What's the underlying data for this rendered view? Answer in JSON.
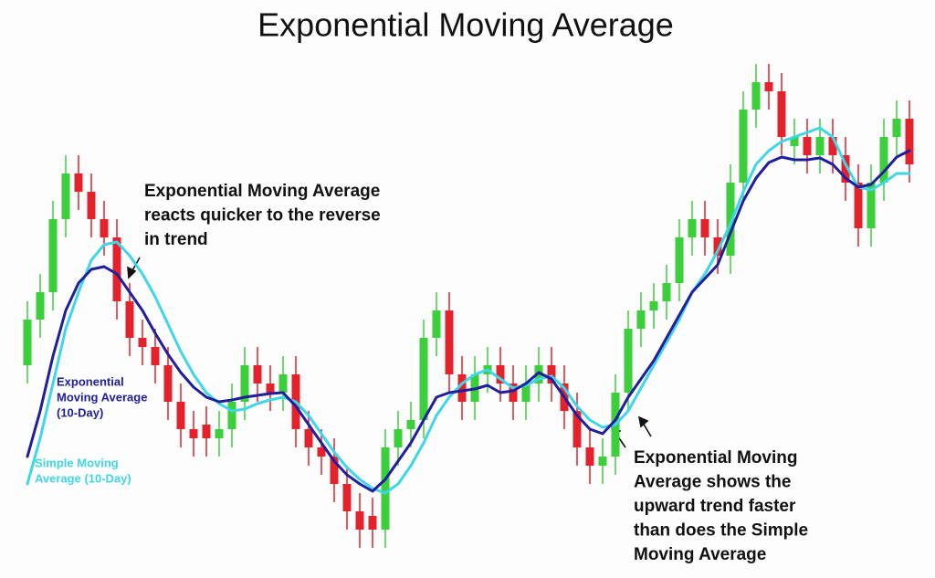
{
  "chart_data": {
    "type": "candlestick",
    "title": "Exponential Moving Average",
    "ylim": [
      0,
      600
    ],
    "up_color": "#3ccf3c",
    "down_color": "#e3222c",
    "open": [
      220,
      270,
      300,
      380,
      430,
      410,
      380,
      360,
      290,
      250,
      240,
      220,
      180,
      150,
      155,
      140,
      150,
      180,
      220,
      200,
      190,
      210,
      150,
      130,
      120,
      90,
      60,
      55,
      40,
      130,
      150,
      160,
      250,
      280,
      210,
      180,
      210,
      220,
      200,
      180,
      200,
      220,
      200,
      170,
      130,
      110,
      120,
      190,
      260,
      280,
      290,
      310,
      360,
      380,
      360,
      340,
      420,
      500,
      530,
      520,
      460,
      470,
      450,
      470,
      450,
      420,
      370,
      420,
      470,
      490
    ],
    "high": [
      290,
      320,
      400,
      450,
      450,
      430,
      400,
      380,
      310,
      270,
      260,
      240,
      200,
      170,
      175,
      170,
      200,
      240,
      240,
      220,
      230,
      230,
      170,
      150,
      140,
      110,
      80,
      75,
      150,
      170,
      180,
      270,
      300,
      300,
      230,
      230,
      240,
      240,
      220,
      220,
      240,
      240,
      220,
      190,
      150,
      140,
      210,
      280,
      300,
      310,
      330,
      380,
      400,
      400,
      380,
      440,
      520,
      550,
      550,
      540,
      490,
      490,
      490,
      490,
      470,
      440,
      440,
      490,
      510,
      510
    ],
    "low": [
      200,
      250,
      280,
      360,
      390,
      360,
      340,
      270,
      230,
      220,
      200,
      160,
      130,
      120,
      120,
      120,
      130,
      160,
      180,
      170,
      170,
      130,
      110,
      100,
      70,
      40,
      20,
      20,
      20,
      110,
      130,
      140,
      230,
      190,
      160,
      160,
      190,
      180,
      160,
      160,
      180,
      180,
      150,
      110,
      90,
      90,
      100,
      170,
      240,
      260,
      270,
      290,
      340,
      340,
      320,
      320,
      400,
      480,
      500,
      450,
      440,
      430,
      430,
      430,
      400,
      350,
      350,
      400,
      450,
      420
    ],
    "close": [
      270,
      300,
      380,
      430,
      410,
      380,
      360,
      290,
      250,
      240,
      220,
      180,
      150,
      140,
      140,
      150,
      180,
      220,
      200,
      190,
      210,
      150,
      130,
      120,
      90,
      60,
      40,
      40,
      130,
      150,
      160,
      250,
      280,
      210,
      180,
      210,
      220,
      200,
      180,
      200,
      220,
      200,
      170,
      130,
      110,
      120,
      190,
      260,
      280,
      290,
      310,
      360,
      380,
      360,
      340,
      420,
      500,
      530,
      520,
      470,
      470,
      450,
      470,
      450,
      420,
      370,
      420,
      470,
      490,
      440
    ],
    "series": [
      {
        "name": [
          "Exponential",
          "Moving Average",
          "(10-Day)"
        ],
        "color": "#1f1f9e",
        "values": [
          120,
          170,
          230,
          280,
          310,
          325,
          328,
          320,
          300,
          280,
          255,
          232,
          212,
          196,
          185,
          180,
          182,
          185,
          187,
          189,
          190,
          175,
          155,
          135,
          115,
          100,
          90,
          82,
          95,
          115,
          135,
          160,
          185,
          190,
          192,
          194,
          198,
          190,
          192,
          200,
          212,
          205,
          185,
          165,
          150,
          145,
          160,
          185,
          205,
          225,
          250,
          275,
          300,
          315,
          330,
          365,
          400,
          425,
          442,
          448,
          445,
          445,
          447,
          440,
          425,
          415,
          418,
          432,
          448,
          455
        ]
      },
      {
        "name": [
          "Simple Moving",
          "Average (10-Day)"
        ],
        "color": "#3fd6e8",
        "values": [
          90,
          140,
          200,
          260,
          300,
          335,
          352,
          355,
          340,
          320,
          295,
          265,
          235,
          210,
          190,
          178,
          170,
          172,
          178,
          182,
          185,
          180,
          165,
          145,
          125,
          108,
          95,
          85,
          80,
          90,
          110,
          135,
          165,
          185,
          200,
          210,
          215,
          205,
          195,
          198,
          205,
          208,
          195,
          175,
          160,
          152,
          155,
          170,
          195,
          220,
          245,
          270,
          300,
          320,
          345,
          375,
          410,
          440,
          455,
          465,
          470,
          475,
          480,
          470,
          440,
          415,
          412,
          420,
          430,
          430
        ]
      }
    ],
    "annotations": [
      [
        "Exponential Moving Average",
        "reacts quicker to the reverse",
        "in trend"
      ],
      [
        "Exponential Moving",
        "Average shows the",
        "upward trend faster",
        "than does the Simple",
        "Moving Average"
      ]
    ]
  }
}
